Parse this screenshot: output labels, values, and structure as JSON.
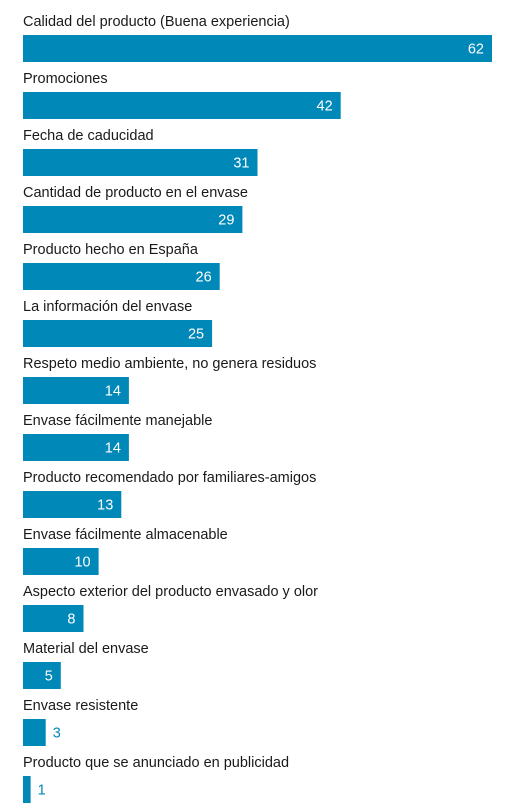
{
  "chart_data": {
    "type": "bar",
    "orientation": "horizontal",
    "bar_color": "#0088b8",
    "inside_label_color": "#ffffff",
    "outside_label_color": "#0088b8",
    "label_color": "#1a1a1a",
    "categories": [
      "Calidad del producto (Buena experiencia)",
      "Promociones",
      "Fecha de caducidad",
      "Cantidad de producto en el envase",
      "Producto hecho en España",
      "La información del envase",
      "Respeto medio ambiente, no genera residuos",
      "Envase fácilmente manejable",
      "Producto recomendado por familiares-amigos",
      "Envase fácilmente almacenable",
      "Aspecto exterior del producto envasado y olor",
      "Material del envase",
      "Envase resistente",
      "Producto que se anunciado en publicidad"
    ],
    "values": [
      62,
      42,
      31,
      29,
      26,
      25,
      14,
      14,
      13,
      10,
      8,
      5,
      3,
      1
    ],
    "title": "",
    "xlabel": "",
    "ylabel": "",
    "xlim": [
      0,
      62
    ],
    "grid": false,
    "legend": "none"
  }
}
